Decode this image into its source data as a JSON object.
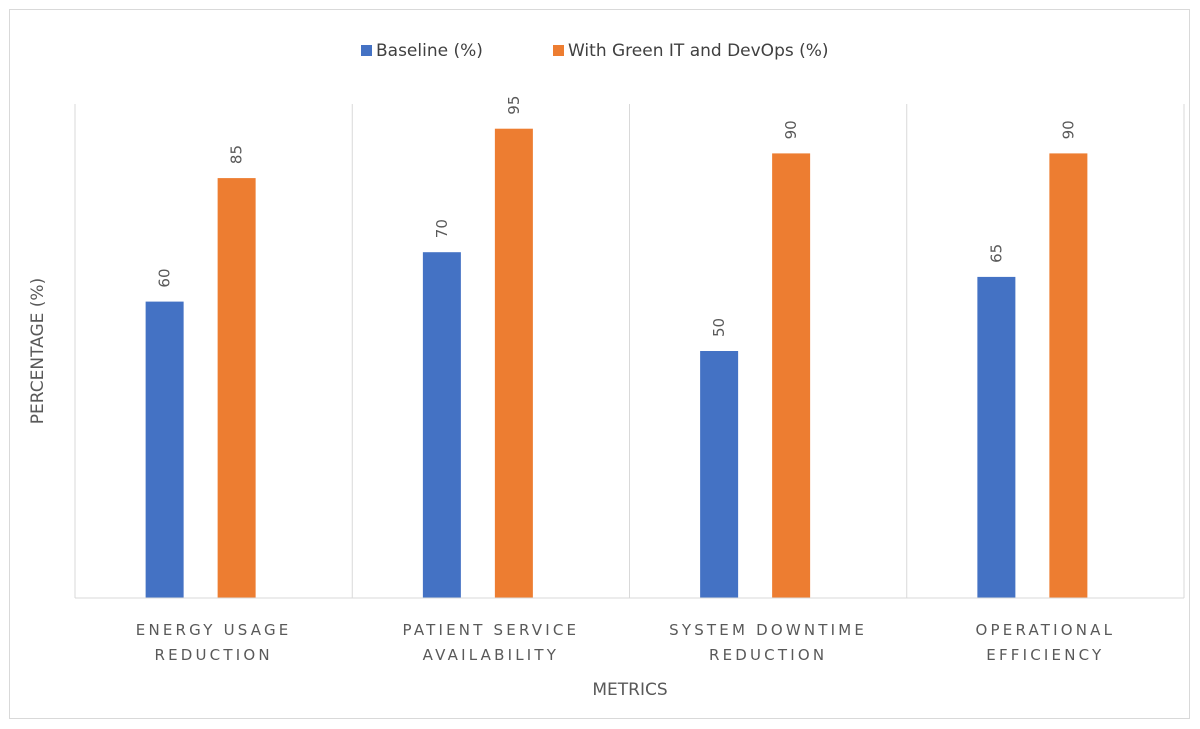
{
  "chart_data": {
    "type": "bar",
    "categories": [
      [
        "ENERGY USAGE",
        "REDUCTION"
      ],
      [
        "PATIENT SERVICE",
        "AVAILABILITY"
      ],
      [
        "SYSTEM DOWNTIME",
        "REDUCTION"
      ],
      [
        "OPERATIONAL",
        "EFFICIENCY"
      ]
    ],
    "series": [
      {
        "name": "Baseline (%)",
        "color": "#4472c4",
        "values": [
          60,
          70,
          50,
          65
        ]
      },
      {
        "name": "With Green IT and DevOps (%)",
        "color": "#ed7d31",
        "values": [
          85,
          95,
          90,
          90
        ]
      }
    ],
    "xlabel": "METRICS",
    "ylabel": "PERCENTAGE (%)",
    "ylim": [
      0,
      100
    ],
    "grid": "vertical category separators",
    "legend": "top-center",
    "data_labels": true
  }
}
